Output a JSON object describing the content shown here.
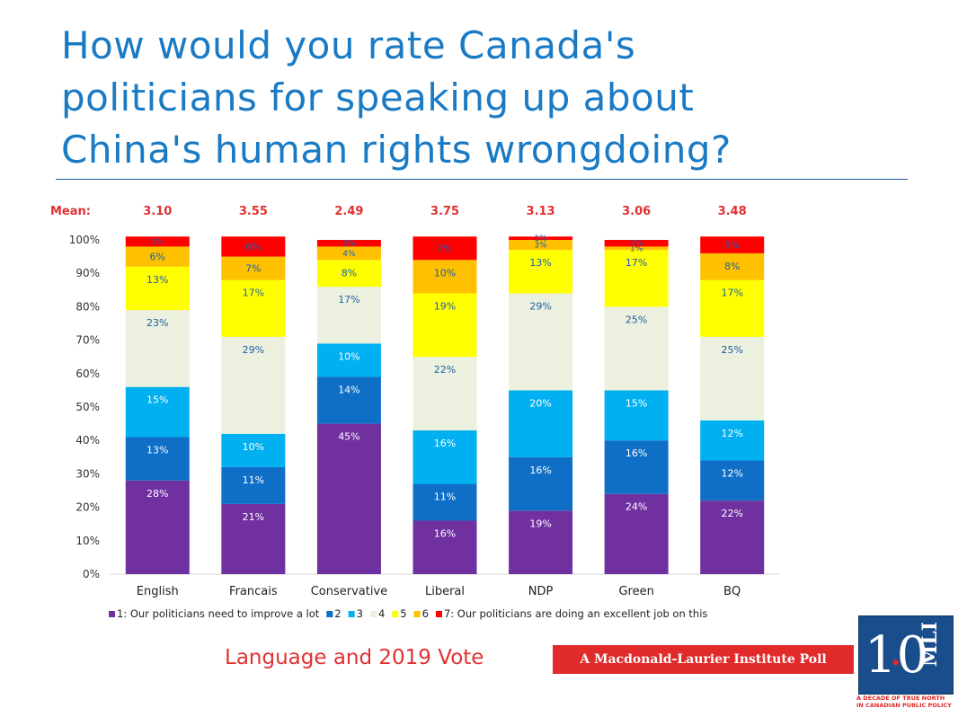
{
  "title": {
    "line1": "How would you rate Canada's",
    "line2": "politicians for speaking up about",
    "line3": "China's human rights wrongdoing?"
  },
  "subtitle": "Language and 2019 Vote",
  "banner": "A Macdonald-Laurier Institute Poll",
  "logo": {
    "number": "10",
    "letters": "MLI",
    "tagline_line1": "A DECADE OF TRUE NORTH",
    "tagline_line2": "IN CANADIAN PUBLIC POLICY",
    "accent_color": "#e12a2a",
    "box_color": "#1a4d8c"
  },
  "chart_data": {
    "type": "bar",
    "stacked": true,
    "mean_label": "Mean:",
    "means": [
      "3.10",
      "3.55",
      "2.49",
      "3.75",
      "3.13",
      "3.06",
      "3.48"
    ],
    "categories": [
      "English",
      "Francais",
      "Conservative",
      "Liberal",
      "NDP",
      "Green",
      "BQ"
    ],
    "y_ticks": [
      "0%",
      "10%",
      "20%",
      "30%",
      "40%",
      "50%",
      "60%",
      "70%",
      "80%",
      "90%",
      "100%"
    ],
    "ylim": [
      0,
      100
    ],
    "legend_position": "bottom",
    "series": [
      {
        "name": "1: Our politicians need to improve a lot",
        "color": "#7030a0",
        "label_color": "#ffffff",
        "values": [
          28,
          21,
          45,
          16,
          19,
          24,
          22
        ]
      },
      {
        "name": "2",
        "color": "#0f6fc6",
        "label_color": "#ffffff",
        "values": [
          13,
          11,
          14,
          11,
          16,
          16,
          12
        ]
      },
      {
        "name": "3",
        "color": "#00b0f0",
        "label_color": "#ffffff",
        "values": [
          15,
          10,
          10,
          16,
          20,
          15,
          12
        ]
      },
      {
        "name": "4",
        "color": "#ebf1de",
        "label_color": "#1f5fa8",
        "values": [
          23,
          29,
          17,
          22,
          29,
          25,
          25
        ]
      },
      {
        "name": "5",
        "color": "#ffff00",
        "label_color": "#1f5fa8",
        "values": [
          13,
          17,
          8,
          19,
          13,
          17,
          17
        ]
      },
      {
        "name": "6",
        "color": "#ffc000",
        "label_color": "#1f5fa8",
        "values": [
          6,
          7,
          4,
          10,
          3,
          1,
          8
        ]
      },
      {
        "name": "7: Our politicians are doing an excellent job on this",
        "color": "#ff0000",
        "label_color": "#1f5fa8",
        "values": [
          3,
          6,
          2,
          7,
          1,
          2,
          5
        ]
      }
    ],
    "colors": {
      "mean_text": "#e03131",
      "axis_text": "#333333",
      "axis_line": "#d9d9d9"
    }
  }
}
